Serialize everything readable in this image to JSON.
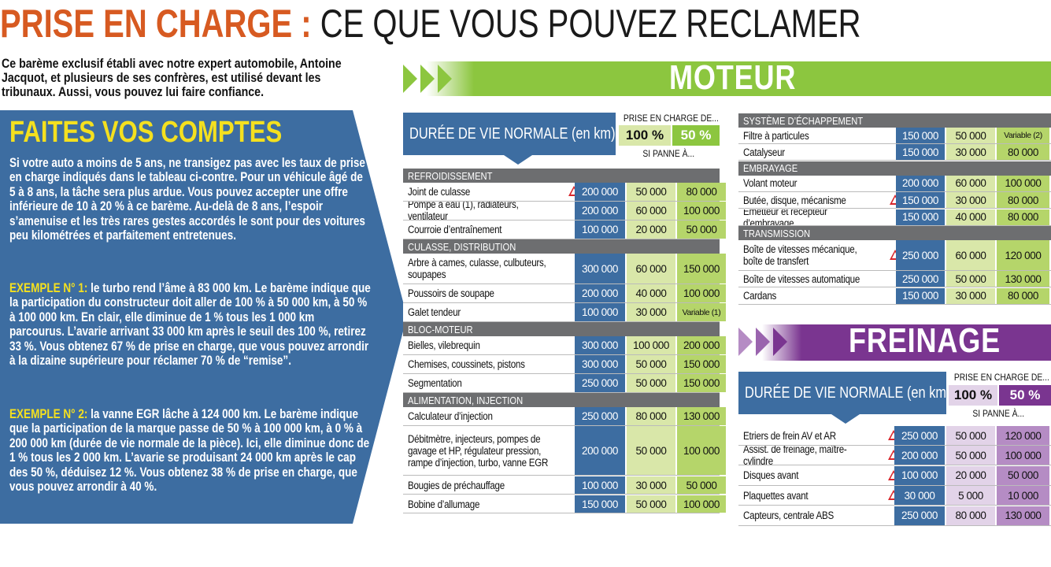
{
  "title": {
    "red": "PRISE EN CHARGE :",
    "black": " CE QUE VOUS POUVEZ RECLAMER"
  },
  "intro": "Ce barème exclusif établi avec notre expert automobile, Antoine Jacquot, et plusieurs de ses confrères, est utilisé devant les tribunaux. Aussi, vous pouvez lui faire confiance.",
  "left": {
    "heading": "FAITES VOS COMPTES",
    "p1": "Si votre auto a moins de 5 ans, ne transigez pas avec les taux de prise en charge indiqués dans le tableau ci-contre. Pour un véhicule âgé de 5 à 8 ans, la tâche sera plus ardue. Vous pouvez accepter une offre inférieure de 10 à 20 % à ce barème. Au-delà de 8 ans, l’espoir s’amenuise et les très rares gestes accordés le sont pour des voitures peu kilométrées et parfaitement entretenues.",
    "ex1_label": "EXEMPLE N° 1:",
    "ex1_text": " le turbo rend l’âme à 83 000 km. Le barème indique que la participation du constructeur doit aller de 100 % à 50 000 km, à 50 % à 100 000 km. En clair, elle diminue de 1 % tous les 1 000 km parcourus. L’avarie arrivant 33 000 km après le seuil des 100 %, retirez 33 %. Vous obtenez 67 % de prise en charge, que vous pouvez arrondir à la dizaine supérieure pour réclamer 70 % de “remise”.",
    "ex2_label": "EXEMPLE N° 2:",
    "ex2_text": " la vanne EGR lâche à 124 000 km. Le barème indique que la participation de la marque passe de 50 % à 100 000 km, à 0 % à 200 000 km (durée de vie normale de la pièce). Ici, elle diminue donc de 1 % tous les 2 000 km. L’avarie se produisant 24 000 km après le cap des 50 %, déduisez 12 %. Vous obtenez 38 % de prise en charge, que vous pouvez arrondir à 40 %."
  },
  "moteur": {
    "banner": "MOTEUR",
    "header": {
      "duree": "DURÉE DE VIE NORMALE (en km)",
      "prise": "PRISE EN CHARGE DE...",
      "p100": "100 %",
      "p50": "50 %",
      "panne": "SI PANNE À..."
    },
    "colors": {
      "accent": "#8cc63f",
      "blue": "#3d6da1",
      "light": "#d9e7a9",
      "mid": "#b5d56a"
    },
    "left_col": [
      {
        "section": "REFROIDISSEMENT"
      },
      {
        "label": "Joint de culasse",
        "warn": true,
        "v": [
          "200 000",
          "50 000",
          "80 000"
        ]
      },
      {
        "label": "Pompe à eau (1), radiateurs, ventilateur",
        "v": [
          "200 000",
          "60 000",
          "100 000"
        ]
      },
      {
        "label": "Courroie d’entraînement",
        "v": [
          "100 000",
          "20 000",
          "50 000"
        ]
      },
      {
        "section": "CULASSE, DISTRIBUTION"
      },
      {
        "label": "Arbre à cames, culasse, culbuteurs, soupapes",
        "tall": true,
        "v": [
          "300 000",
          "60 000",
          "150 000"
        ]
      },
      {
        "label": "Poussoirs de soupape",
        "v": [
          "200 000",
          "40 000",
          "100 000"
        ]
      },
      {
        "label": "Galet tendeur",
        "v": [
          "100 000",
          "30 000",
          "Variable (1)"
        ]
      },
      {
        "section": "BLOC-MOTEUR"
      },
      {
        "label": "Bielles, vilebrequin",
        "v": [
          "300 000",
          "100 000",
          "200 000"
        ]
      },
      {
        "label": "Chemises, coussinets, pistons",
        "v": [
          "300 000",
          "50 000",
          "150 000"
        ]
      },
      {
        "label": "Segmentation",
        "v": [
          "250 000",
          "50 000",
          "150 000"
        ]
      },
      {
        "section": "ALIMENTATION, INJECTION"
      },
      {
        "label": "Calculateur d’injection",
        "v": [
          "250 000",
          "80 000",
          "130 000"
        ]
      },
      {
        "label": "Débitmètre, injecteurs, pompes de gavage et HP, régulateur pression, rampe d’injection, turbo, vanne EGR",
        "xtall": true,
        "v": [
          "200 000",
          "50 000",
          "100 000"
        ]
      },
      {
        "label": "Bougies de préchauffage",
        "v": [
          "100 000",
          "30 000",
          "50 000"
        ]
      },
      {
        "label": "Bobine d’allumage",
        "v": [
          "150 000",
          "50 000",
          "100 000"
        ]
      }
    ],
    "right_col": [
      {
        "section": "SYSTÈME D’ÉCHAPPEMENT"
      },
      {
        "label": "Filtre à particules",
        "v": [
          "150 000",
          "50 000",
          "Variable (2)"
        ]
      },
      {
        "label": "Catalyseur",
        "v": [
          "150 000",
          "30 000",
          "80 000"
        ]
      },
      {
        "section": "EMBRAYAGE"
      },
      {
        "label": "Volant moteur",
        "v": [
          "200 000",
          "60 000",
          "100 000"
        ]
      },
      {
        "label": "Butée, disque, mécanisme",
        "warn": true,
        "v": [
          "150 000",
          "30 000",
          "80 000"
        ]
      },
      {
        "label": "Emetteur et récepteur d’embrayage",
        "v": [
          "150 000",
          "40 000",
          "80 000"
        ]
      },
      {
        "section": "TRANSMISSION"
      },
      {
        "label": "Boîte de vitesses mécanique, boîte de transfert",
        "warn": true,
        "tall": true,
        "v": [
          "250 000",
          "60 000",
          "120 000"
        ]
      },
      {
        "label": "Boîte de vitesses automatique",
        "v": [
          "250 000",
          "50 000",
          "130 000"
        ]
      },
      {
        "label": "Cardans",
        "v": [
          "150 000",
          "30 000",
          "80 000"
        ]
      }
    ]
  },
  "freinage": {
    "banner": "FREINAGE",
    "header": {
      "duree": "DURÉE DE VIE NORMALE (en km)",
      "prise": "PRISE EN CHARGE DE...",
      "p100": "100 %",
      "p50": "50 %",
      "panne": "SI PANNE À..."
    },
    "colors": {
      "accent": "#7a3590",
      "light": "#e2d3e8",
      "mid": "#b58cc4"
    },
    "rows": [
      {
        "label": "Etriers de frein AV et AR",
        "warn": true,
        "v": [
          "250 000",
          "50 000",
          "120 000"
        ]
      },
      {
        "label": "Assist. de freinage, maître-cylindre",
        "warn": true,
        "v": [
          "200 000",
          "50 000",
          "100 000"
        ]
      },
      {
        "label": "Disques avant",
        "warn": true,
        "v": [
          "100 000",
          "20 000",
          "50 000"
        ]
      },
      {
        "label": "Plaquettes avant",
        "warn": true,
        "v": [
          "30 000",
          "5 000",
          "10 000"
        ]
      },
      {
        "label": "Capteurs, centrale ABS",
        "v": [
          "250 000",
          "80 000",
          "130 000"
        ]
      }
    ]
  }
}
